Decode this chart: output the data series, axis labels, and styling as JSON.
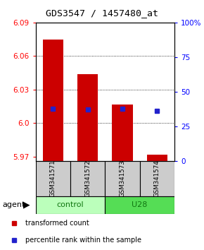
{
  "title": "GDS3547 / 1457480_at",
  "samples": [
    "GSM341571",
    "GSM341572",
    "GSM341573",
    "GSM341574"
  ],
  "bar_values": [
    6.075,
    6.044,
    6.017,
    5.972
  ],
  "bar_bottom": 5.966,
  "percentile_values": [
    6.013,
    6.012,
    6.013,
    6.011
  ],
  "ylim_left": [
    5.966,
    6.09
  ],
  "ylim_right": [
    0,
    100
  ],
  "yticks_left": [
    5.97,
    6.0,
    6.03,
    6.06,
    6.09
  ],
  "yticks_right": [
    0,
    25,
    50,
    75,
    100
  ],
  "ytick_labels_right": [
    "0",
    "25",
    "50",
    "75",
    "100%"
  ],
  "grid_lines": [
    6.0,
    6.03,
    6.06
  ],
  "bar_color": "#cc0000",
  "percentile_color": "#2222cc",
  "control_color": "#bbffbb",
  "u28_color": "#55dd55",
  "group_text_color": "#117711",
  "legend_items": [
    {
      "color": "#cc0000",
      "label": "transformed count"
    },
    {
      "color": "#2222cc",
      "label": "percentile rank within the sample"
    }
  ],
  "figsize": [
    2.9,
    3.54
  ],
  "dpi": 100
}
